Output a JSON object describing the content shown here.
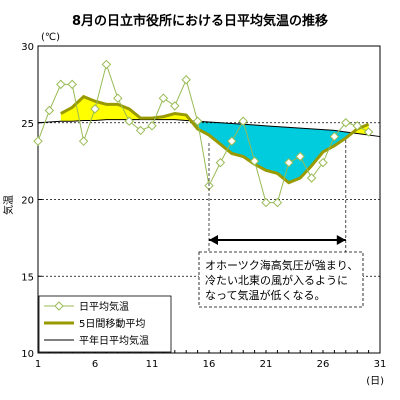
{
  "chart_data": {
    "type": "line",
    "title": "8月の日立市役所における日平均気温の推移",
    "y_unit": "(℃)",
    "ylabel": "気温",
    "x_unit": "(日)",
    "xlim": [
      1,
      31
    ],
    "ylim": [
      10,
      30
    ],
    "x_ticks": [
      1,
      6,
      11,
      16,
      21,
      26,
      31
    ],
    "y_ticks": [
      10,
      15,
      20,
      25,
      30
    ],
    "grid": "dashed horizontal at 15, 20, 25",
    "x": [
      1,
      2,
      3,
      4,
      5,
      6,
      7,
      8,
      9,
      10,
      11,
      12,
      13,
      14,
      15,
      16,
      17,
      18,
      19,
      20,
      21,
      22,
      23,
      24,
      25,
      26,
      27,
      28,
      29,
      30,
      31
    ],
    "series": [
      {
        "name": "日平均気温",
        "color": "#99bb55",
        "values": [
          23.8,
          25.8,
          27.5,
          27.5,
          23.8,
          25.9,
          28.8,
          26.6,
          25.1,
          24.5,
          24.8,
          26.6,
          26.1,
          27.8,
          25.1,
          20.9,
          22.4,
          23.8,
          25.1,
          22.5,
          19.8,
          19.8,
          22.4,
          22.8,
          21.4,
          22.4,
          24.1,
          25.0,
          24.8,
          24.4,
          null
        ]
      },
      {
        "name": "5日間移動平均",
        "color": "#999900",
        "values": [
          null,
          null,
          25.6,
          26.0,
          26.7,
          26.4,
          26.2,
          26.2,
          25.9,
          25.3,
          25.3,
          25.4,
          25.6,
          25.5,
          24.6,
          24.2,
          23.6,
          23.0,
          22.8,
          22.3,
          21.9,
          21.7,
          21.1,
          21.4,
          22.2,
          23.1,
          23.5,
          24.0,
          24.6,
          24.9,
          null
        ]
      },
      {
        "name": "平年日平均気温",
        "color": "#000000",
        "values": [
          25.0,
          25.05,
          25.1,
          25.1,
          25.15,
          25.15,
          25.2,
          25.2,
          25.2,
          25.2,
          25.2,
          25.2,
          25.2,
          25.15,
          25.1,
          25.05,
          25.0,
          24.95,
          24.9,
          24.85,
          24.8,
          24.75,
          24.7,
          24.65,
          24.6,
          24.55,
          24.5,
          24.4,
          24.3,
          24.2,
          24.1
        ]
      }
    ],
    "fill_above_color": "#ffff00",
    "fill_below_color": "#00ccdd",
    "arrow_range": [
      16,
      28
    ],
    "annotation": "オホーツク海高気圧が強まり、冷たい北東の風が入るようになって気温が低くなる。",
    "annotation_lines": [
      "オホーツク海高気圧が強まり、",
      "冷たい北東の風が入るように",
      "なって気温が低くなる。"
    ],
    "legend_position": "bottom-left"
  }
}
